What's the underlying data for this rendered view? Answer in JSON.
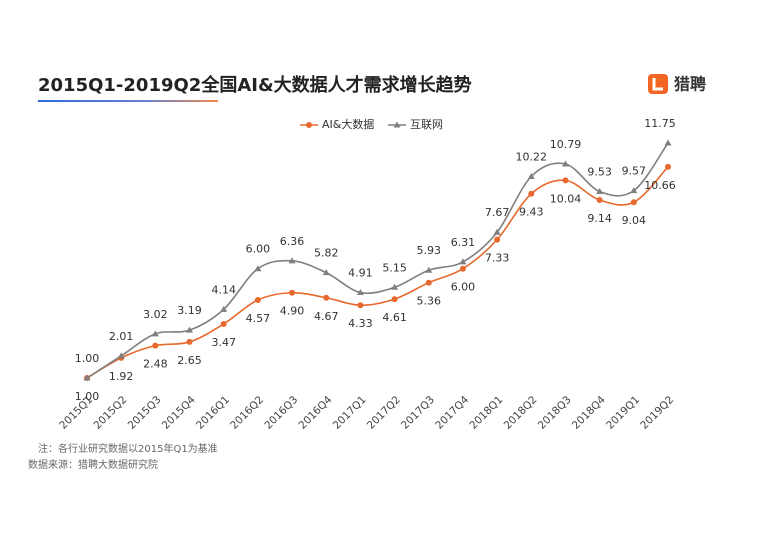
{
  "chart_data": {
    "type": "line",
    "title": "2015Q1-2019Q2全国AI&大数据人才需求增长趋势",
    "logo": "猎聘",
    "notes": [
      "注：各行业研究数据以2015年Q1为基准",
      "数据来源：猎聘大数据研究院"
    ],
    "categories": [
      "2015Q1",
      "2015Q2",
      "2015Q3",
      "2015Q4",
      "2016Q1",
      "2016Q2",
      "2016Q3",
      "2016Q4",
      "2017Q1",
      "2017Q2",
      "2017Q3",
      "2017Q4",
      "2018Q1",
      "2018Q2",
      "2018Q3",
      "2018Q4",
      "2019Q1",
      "2019Q2"
    ],
    "series": [
      {
        "name": "AI&大数据",
        "color": "#e8692d",
        "marker": "circle",
        "values": [
          1.0,
          1.92,
          2.48,
          2.65,
          3.47,
          4.57,
          4.9,
          4.67,
          4.33,
          4.61,
          5.36,
          6.0,
          7.33,
          9.43,
          10.04,
          9.14,
          9.04,
          10.66
        ],
        "value_labels": [
          "1.00",
          "1.92",
          "2.48",
          "2.65",
          "3.47",
          "4.57",
          "4.90",
          "4.67",
          "4.33",
          "4.61",
          "5.36",
          "6.00",
          "7.33",
          "9.43",
          "10.04",
          "9.14",
          "9.04",
          "10.66"
        ]
      },
      {
        "name": "互联网",
        "color": "#7f7f7f",
        "marker": "triangle",
        "values": [
          1.0,
          2.01,
          3.02,
          3.19,
          4.14,
          6.0,
          6.36,
          5.82,
          4.91,
          5.15,
          5.93,
          6.31,
          7.67,
          10.22,
          10.79,
          9.53,
          9.57,
          11.75
        ],
        "value_labels": [
          "1.00",
          "2.01",
          "3.02",
          "3.19",
          "4.14",
          "6.00",
          "6.36",
          "5.82",
          "4.91",
          "5.15",
          "5.93",
          "6.31",
          "7.67",
          "10.22",
          "10.79",
          "9.53",
          "9.57",
          "11.75"
        ]
      }
    ]
  }
}
